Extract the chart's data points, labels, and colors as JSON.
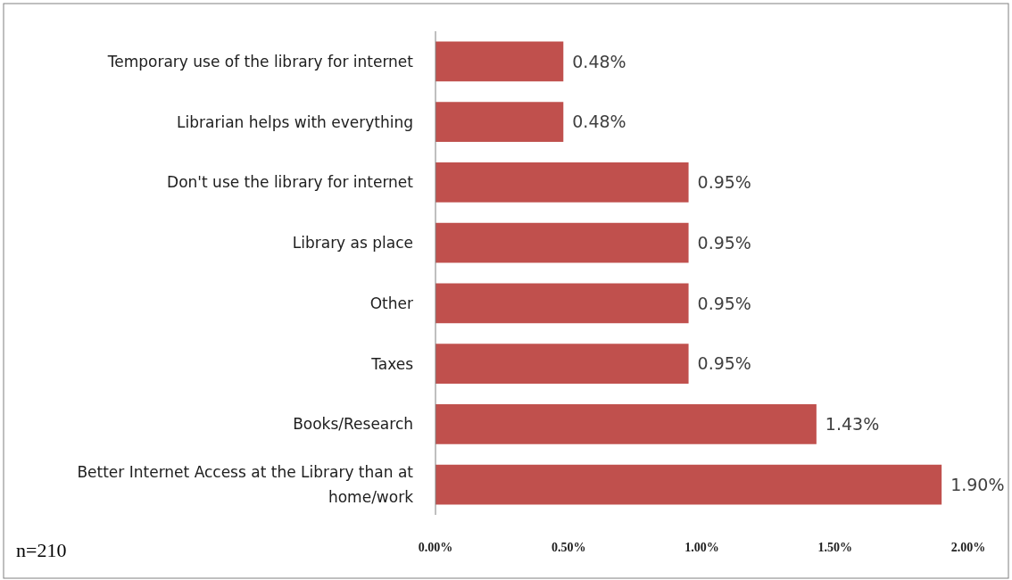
{
  "chart_data": {
    "type": "bar",
    "orientation": "horizontal",
    "categories": [
      "Temporary use of the library for internet",
      "Librarian helps with everything",
      "Don't use the library for internet",
      "Library as place",
      "Other",
      "Taxes",
      "Books/Research",
      "Better Internet Access at the Library than at home/work"
    ],
    "values": [
      0.48,
      0.48,
      0.95,
      0.95,
      0.95,
      0.95,
      1.43,
      1.9
    ],
    "value_labels": [
      "0.48%",
      "0.48%",
      "0.95%",
      "0.95%",
      "0.95%",
      "0.95%",
      "1.43%",
      "1.90%"
    ],
    "color": "#c0504d",
    "xlim": [
      0,
      2
    ],
    "xticks": [
      {
        "value": 0,
        "label": "0.00%"
      },
      {
        "value": 0.5,
        "label": "0.50%"
      },
      {
        "value": 1,
        "label": "1.00%"
      },
      {
        "value": 1.5,
        "label": "1.50%"
      },
      {
        "value": 2,
        "label": "2.00%"
      }
    ],
    "grid": false,
    "annotations": [
      "n=210"
    ]
  }
}
